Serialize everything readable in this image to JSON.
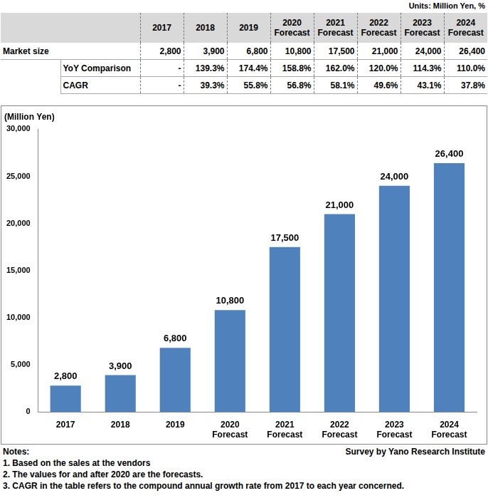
{
  "units": "Units: Million Yen, %",
  "table": {
    "header": [
      "2017",
      "2018",
      "2019",
      "2020 Forecast",
      "2021 Forecast",
      "2022 Forecast",
      "2023 Forecast",
      "2024 Forecast"
    ],
    "rows": [
      {
        "label": "Market size",
        "cells": [
          "2,800",
          "3,900",
          "6,800",
          "10,800",
          "17,500",
          "21,000",
          "24,000",
          "26,400"
        ]
      },
      {
        "label": "YoY Comparison",
        "cells": [
          "-",
          "139.3%",
          "174.4%",
          "158.8%",
          "162.0%",
          "120.0%",
          "114.3%",
          "110.0%"
        ]
      },
      {
        "label": "CAGR",
        "cells": [
          "-",
          "39.3%",
          "55.8%",
          "56.8%",
          "58.1%",
          "49.6%",
          "43.1%",
          "37.8%"
        ]
      }
    ]
  },
  "chart_data": {
    "type": "bar",
    "y_axis_label": "(Million Yen)",
    "categories": [
      "2017",
      "2018",
      "2019",
      "2020 Forecast",
      "2021 Forecast",
      "2022 Forecast",
      "2023 Forecast",
      "2024 Forecast"
    ],
    "values": [
      2800,
      3900,
      6800,
      10800,
      17500,
      21000,
      24000,
      26400
    ],
    "value_labels": [
      "2,800",
      "3,900",
      "6,800",
      "10,800",
      "17,500",
      "21,000",
      "24,000",
      "26,400"
    ],
    "color": "#4f81bd",
    "ylim": [
      0,
      30000
    ],
    "yticks": [
      0,
      {
        "value": 5000,
        "label": "5,000"
      },
      {
        "value": 10000,
        "label": "10,000"
      },
      {
        "value": 15000,
        "label": "15,000"
      },
      {
        "value": 20000,
        "label": "20,000"
      },
      {
        "value": 25000,
        "label": "25,000"
      },
      {
        "value": 30000,
        "label": "30,000"
      }
    ],
    "grid": false,
    "data_labels": true
  },
  "notes": {
    "title": "Notes:",
    "source": "Survey by Yano Research Institute",
    "items": [
      "1. Based on the sales at the vendors",
      "2. The values for and after 2020 are the forecasts.",
      "3. CAGR in the table refers to the compound annual growth rate from 2017 to each year concerned."
    ]
  }
}
